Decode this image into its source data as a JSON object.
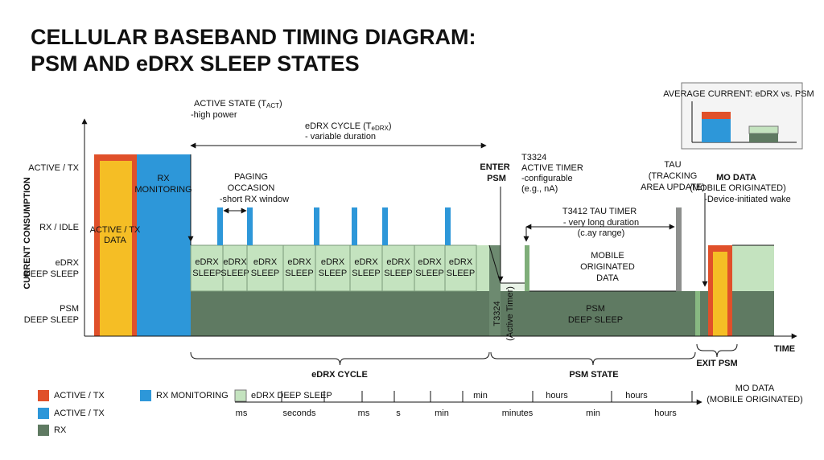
{
  "title": [
    "CELLULAR BASEBAND TIMING DIAGRAM:",
    "PSM AND eDRX SLEEP STATES"
  ],
  "axis": {
    "y_label": "CURRENT CONSUMPTION",
    "x_label": "TIME",
    "levels": [
      [
        "ACTIVE / TX"
      ],
      [
        "RX / IDLE"
      ],
      [
        "eDRX",
        "DEEP SLEEP"
      ],
      [
        "PSM",
        "DEEP SLEEP"
      ]
    ]
  },
  "blocks": {
    "active_tx": [
      "ACTIVE / TX",
      "DATA"
    ],
    "rx_monitoring": [
      "RX",
      "MONITORING"
    ],
    "edrx_sleep": [
      [
        "eDRX",
        "SLEEP"
      ],
      [
        "eDRX",
        "SLEEP"
      ],
      [
        "eDRX",
        "SLEEP"
      ],
      [
        "eDRX",
        "SLEEP"
      ],
      [
        "eDRX",
        "SLEEP"
      ],
      [
        "eDRX",
        "SLEEP"
      ],
      [
        "eDRX",
        "SLEEP"
      ],
      [
        "eDRX",
        "SLEEP"
      ],
      [
        "eDRX",
        "SLEEP"
      ]
    ],
    "mo_data": [
      "MOBILE",
      "ORIGINATED",
      "DATA"
    ],
    "psm_sleep": [
      "PSM",
      "DEEP SLEEP"
    ],
    "t3324_vertical": [
      "T3324",
      "(Active Timer)"
    ]
  },
  "annotations": {
    "active_state": {
      "prefix": "ACTIVE STATE (T",
      "sub": "ACT",
      "suffix": ")",
      "note": "-high power"
    },
    "edrx_cycle": {
      "prefix": "eDRX CYCLE (T",
      "sub": "eDRX",
      "suffix": ")",
      "note": "- variable duration"
    },
    "paging": [
      "PAGING",
      "OCCASION",
      "-short RX window"
    ],
    "enter_psm": [
      "ENTER",
      "PSM"
    ],
    "t3324": [
      "T3324",
      "ACTIVE TIMER",
      "-configurable",
      "(e.g., nA)"
    ],
    "t3412": [
      "T3412 TAU TIMER",
      "- very long duration",
      "(c.ay range)"
    ],
    "tau": [
      "TAU",
      "(TRACKING",
      "AREA UPDATE)"
    ],
    "mo_data": [
      "MO DATA",
      "(MOBILE ORIGINATED)",
      "-Device-initiated wake"
    ]
  },
  "braces": [
    "eDRX CYCLE",
    "PSM STATE",
    "EXIT PSM"
  ],
  "inset": {
    "title": "AVERAGE CURRENT: eDRX vs. PSM"
  },
  "legend": [
    "ACTIVE / TX",
    "ACTIVE / TX",
    "RX",
    "RX MONITORING",
    "eDRX DEEP SLEEP"
  ],
  "scale": {
    "top": [
      "min",
      "hours",
      "hours"
    ],
    "bottom": [
      "ms",
      "seconds",
      "ms",
      "s",
      "min",
      "minutes",
      "min",
      "hours"
    ],
    "end": [
      "MO DATA",
      "(MOBILE ORIGINATED)"
    ]
  }
}
